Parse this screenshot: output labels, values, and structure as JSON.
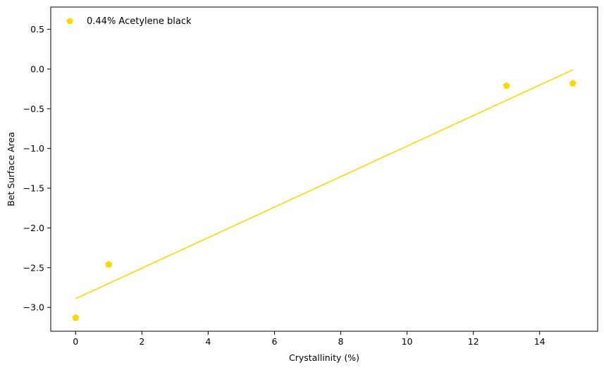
{
  "chart_data": {
    "type": "scatter",
    "title": "",
    "xlabel": "Crystallinity (%)",
    "ylabel": "Bet Surface Area",
    "xlim": [
      -0.75,
      15.75
    ],
    "ylim": [
      -3.3,
      0.78
    ],
    "x_ticks": [
      0,
      2,
      4,
      6,
      8,
      10,
      12,
      14
    ],
    "y_ticks": [
      0.5,
      0.0,
      -0.5,
      -1.0,
      -1.5,
      -2.0,
      -2.5,
      -3.0
    ],
    "x_tick_labels": [
      "0",
      "2",
      "4",
      "6",
      "8",
      "10",
      "12",
      "14"
    ],
    "y_tick_labels": [
      "0.5",
      "0.0",
      "−0.5",
      "−1.0",
      "−1.5",
      "−2.0",
      "−2.5",
      "−3.0"
    ],
    "grid": false,
    "legend_position": "top-left",
    "series": [
      {
        "name": "0.44% Acetylene black",
        "color": "#FFD700",
        "marker": "pentagon",
        "x": [
          0,
          1,
          13,
          15
        ],
        "y": [
          -3.13,
          -2.46,
          -0.21,
          -0.18
        ]
      }
    ],
    "fit_line": {
      "color": "#FFD700",
      "x": [
        0,
        15
      ],
      "y": [
        -2.89,
        -0.01
      ]
    }
  }
}
